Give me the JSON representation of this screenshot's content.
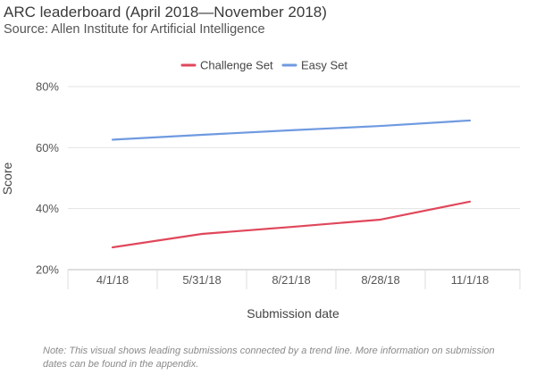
{
  "header": {
    "title": "ARC leaderboard (April 2018—November 2018)",
    "subtitle": "Source: Allen Institute for Artificial Intelligence"
  },
  "footer": {
    "note": "Note: This visual shows leading submissions connected by a trend line. More information on submission dates can be found in the appendix."
  },
  "chart_data": {
    "type": "line",
    "title": "ARC leaderboard (April 2018—November 2018)",
    "subtitle": "Source: Allen Institute for Artificial Intelligence",
    "xlabel": "Submission date",
    "ylabel": "Score",
    "categories": [
      "4/1/18",
      "5/31/18",
      "8/21/18",
      "8/28/18",
      "11/1/18"
    ],
    "ylim": [
      20,
      80
    ],
    "yticks": [
      20,
      40,
      60,
      80
    ],
    "ytick_labels": [
      "20%",
      "40%",
      "60%",
      "80%"
    ],
    "grid": true,
    "legend_position": "top-center",
    "series": [
      {
        "name": "Challenge Set",
        "color": "#e0475b",
        "values": [
          27.3,
          31.7,
          34.0,
          36.4,
          42.3
        ]
      },
      {
        "name": "Easy Set",
        "color": "#6f9ae0",
        "values": [
          62.6,
          64.2,
          65.7,
          67.1,
          68.9
        ]
      }
    ]
  }
}
